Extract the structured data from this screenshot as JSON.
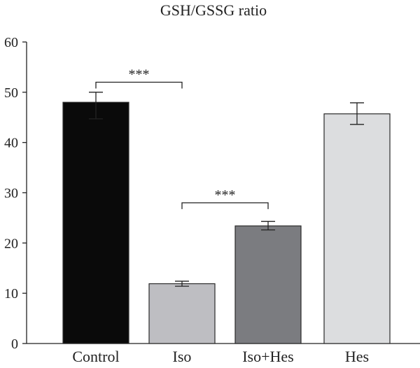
{
  "chart_data": {
    "type": "bar",
    "title": "GSH/GSSG ratio",
    "xlabel": "",
    "ylabel": "",
    "categories": [
      "Control",
      "Iso",
      "Iso+Hes",
      "Hes"
    ],
    "values": [
      48.0,
      11.9,
      23.4,
      45.7
    ],
    "error_lower": [
      44.7,
      11.4,
      22.6,
      43.6
    ],
    "error_upper": [
      50.0,
      12.4,
      24.3,
      47.9
    ],
    "bar_colors": [
      "#0a0a0a",
      "#bebec2",
      "#7b7c80",
      "#dcdddf"
    ],
    "ylim": [
      0,
      60
    ],
    "yticks": [
      0,
      10,
      20,
      30,
      40,
      50,
      60
    ],
    "grid": false,
    "legend": "none",
    "significance": [
      {
        "from": 0,
        "to": 1,
        "label": "***",
        "y": 52.0
      },
      {
        "from": 1,
        "to": 2,
        "label": "***",
        "y": 28.0
      }
    ]
  }
}
